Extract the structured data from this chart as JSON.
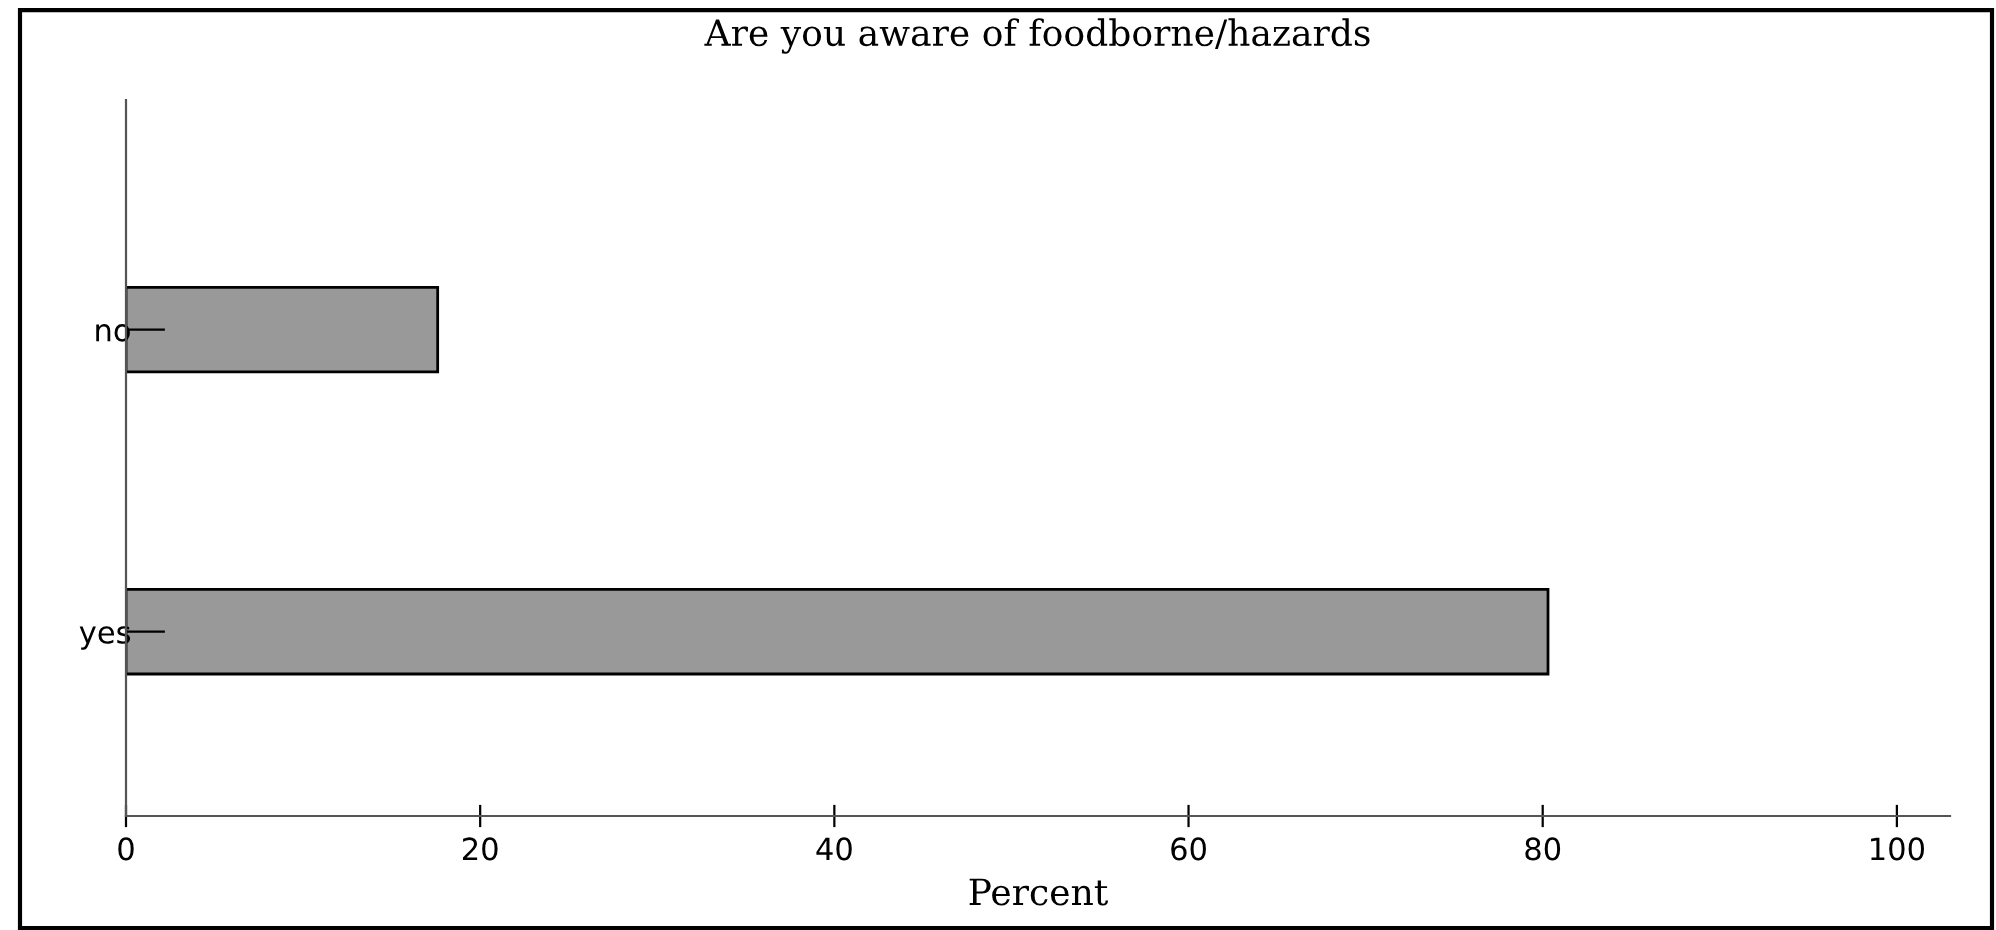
{
  "chart_data": {
    "type": "bar",
    "orientation": "horizontal",
    "title": "Are you aware of foodborne/hazards",
    "xlabel": "Percent",
    "categories": [
      "no",
      "yes"
    ],
    "values": [
      17.6,
      80.3
    ],
    "color": "#999999",
    "xlim": [
      0,
      103
    ],
    "xticks": [
      0,
      20,
      40,
      60,
      80,
      100
    ],
    "grid": false,
    "legend": false
  }
}
